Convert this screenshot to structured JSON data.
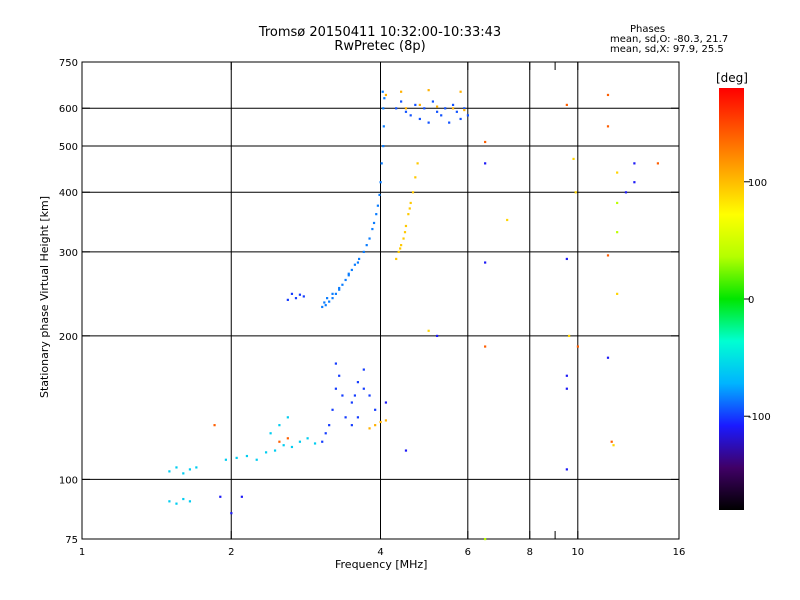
{
  "chart_data": {
    "type": "scatter",
    "title": "Tromsø 20150411 10:32:00-10:33:43",
    "subtitle": "RwPretec (8p)",
    "xlabel": "Frequency [MHz]",
    "ylabel": "Stationary phase Virtual Height [km]",
    "x_scale": "log",
    "y_scale": "log",
    "xlim": [
      1,
      16
    ],
    "ylim": [
      75,
      750
    ],
    "grid": true,
    "x_ticks": [
      1,
      2,
      4,
      6,
      8,
      9,
      10,
      16
    ],
    "x_tick_labels": [
      "1",
      "2",
      "4",
      "6",
      "8",
      "",
      "10",
      "16"
    ],
    "x_grid_lines": [
      2,
      4,
      6,
      8,
      10
    ],
    "y_ticks": [
      75,
      100,
      200,
      300,
      400,
      500,
      600,
      750
    ],
    "y_tick_labels": [
      "75",
      "100",
      "200",
      "300",
      "400",
      "500",
      "600",
      "750"
    ],
    "y_grid_lines": [
      100,
      200,
      300,
      400,
      500,
      600
    ],
    "phases_title": "Phases",
    "stats": [
      "mean, sd,O: -80.3, 21.7",
      "mean, sd,X:  97.9, 25.5"
    ],
    "colorbar": {
      "label": "[deg]",
      "range": [
        -180,
        180
      ],
      "ticks": [
        100,
        0,
        -100
      ],
      "tick_labels": [
        "100",
        "0",
        "-100"
      ],
      "colors": [
        "#000000",
        "#400066",
        "#1a1aff",
        "#00b4ff",
        "#00ffd2",
        "#00e600",
        "#b4ff00",
        "#ffff00",
        "#ffaa00",
        "#ff5500",
        "#ff0000"
      ]
    },
    "groups": [
      {
        "name": "",
        "phase": -85,
        "points": [
          [
            4.0,
            420
          ],
          [
            3.98,
            395
          ],
          [
            3.95,
            375
          ],
          [
            3.92,
            360
          ],
          [
            3.88,
            345
          ],
          [
            3.85,
            335
          ],
          [
            3.8,
            320
          ],
          [
            3.75,
            310
          ],
          [
            3.7,
            300
          ],
          [
            3.62,
            290
          ],
          [
            3.55,
            282
          ],
          [
            3.5,
            275
          ],
          [
            3.45,
            268
          ],
          [
            3.4,
            262
          ],
          [
            3.35,
            256
          ],
          [
            3.3,
            250
          ],
          [
            3.25,
            245
          ],
          [
            3.2,
            240
          ],
          [
            3.15,
            236
          ],
          [
            3.1,
            232
          ],
          [
            3.05,
            230
          ],
          [
            3.6,
            285
          ],
          [
            3.45,
            270
          ],
          [
            3.3,
            252
          ],
          [
            3.2,
            245
          ],
          [
            3.12,
            240
          ],
          [
            3.08,
            235
          ],
          [
            4.02,
            460
          ],
          [
            4.05,
            500
          ],
          [
            4.06,
            550
          ],
          [
            4.05,
            600
          ],
          [
            4.04,
            650
          ],
          [
            4.07,
            630
          ]
        ]
      },
      {
        "name": "",
        "phase": -95,
        "points": [
          [
            4.3,
            600
          ],
          [
            4.4,
            620
          ],
          [
            4.5,
            590
          ],
          [
            4.6,
            580
          ],
          [
            4.7,
            610
          ],
          [
            4.8,
            570
          ],
          [
            4.9,
            600
          ],
          [
            5.0,
            560
          ],
          [
            5.1,
            620
          ],
          [
            5.2,
            590
          ],
          [
            5.3,
            580
          ],
          [
            5.4,
            600
          ],
          [
            5.5,
            560
          ],
          [
            5.6,
            610
          ],
          [
            5.7,
            590
          ],
          [
            5.8,
            570
          ],
          [
            5.9,
            600
          ],
          [
            6.0,
            580
          ]
        ]
      },
      {
        "name": "",
        "phase": 95,
        "points": [
          [
            4.3,
            290
          ],
          [
            4.35,
            300
          ],
          [
            4.4,
            310
          ],
          [
            4.45,
            320
          ],
          [
            4.5,
            340
          ],
          [
            4.55,
            360
          ],
          [
            4.6,
            380
          ],
          [
            4.65,
            400
          ],
          [
            4.7,
            430
          ],
          [
            4.75,
            460
          ],
          [
            4.38,
            305
          ],
          [
            4.48,
            330
          ],
          [
            4.58,
            370
          ]
        ]
      },
      {
        "name": "",
        "phase": -100,
        "points": [
          [
            3.05,
            120
          ],
          [
            3.1,
            125
          ],
          [
            3.15,
            130
          ],
          [
            3.2,
            140
          ],
          [
            3.25,
            155
          ],
          [
            3.3,
            165
          ],
          [
            3.35,
            150
          ],
          [
            3.4,
            135
          ],
          [
            3.5,
            145
          ],
          [
            3.6,
            160
          ],
          [
            3.7,
            170
          ],
          [
            3.8,
            150
          ],
          [
            3.9,
            140
          ],
          [
            3.5,
            130
          ],
          [
            3.6,
            135
          ],
          [
            3.25,
            175
          ],
          [
            3.55,
            150
          ],
          [
            3.7,
            155
          ]
        ]
      },
      {
        "name": "",
        "phase": -60,
        "points": [
          [
            1.5,
            104
          ],
          [
            1.55,
            106
          ],
          [
            1.6,
            103
          ],
          [
            1.65,
            105
          ],
          [
            1.7,
            106
          ],
          [
            1.5,
            90
          ],
          [
            1.55,
            89
          ],
          [
            1.6,
            91
          ],
          [
            1.65,
            90
          ],
          [
            1.95,
            110
          ],
          [
            2.05,
            111
          ],
          [
            2.15,
            112
          ],
          [
            2.25,
            110
          ],
          [
            2.35,
            114
          ],
          [
            2.45,
            115
          ],
          [
            2.55,
            118
          ],
          [
            2.65,
            117
          ],
          [
            2.75,
            120
          ],
          [
            2.85,
            122
          ],
          [
            2.95,
            119
          ],
          [
            2.4,
            125
          ],
          [
            2.5,
            130
          ],
          [
            2.6,
            135
          ]
        ]
      },
      {
        "name": "",
        "phase": 105,
        "points": [
          [
            4.5,
            600
          ],
          [
            4.8,
            610
          ],
          [
            5.2,
            605
          ],
          [
            5.6,
            600
          ],
          [
            5.9,
            595
          ],
          [
            4.1,
            640
          ],
          [
            4.4,
            650
          ],
          [
            5.0,
            655
          ],
          [
            5.8,
            650
          ],
          [
            3.8,
            128
          ],
          [
            3.9,
            130
          ],
          [
            4.0,
            132
          ],
          [
            4.1,
            133
          ]
        ]
      },
      {
        "name": "",
        "phase": -100,
        "points": [
          [
            2.6,
            238
          ],
          [
            2.7,
            240
          ],
          [
            2.65,
            245
          ],
          [
            2.75,
            244
          ],
          [
            2.8,
            242
          ]
        ]
      },
      {
        "name": "",
        "phase": -110,
        "points": [
          [
            6.5,
            460
          ],
          [
            6.5,
            285
          ],
          [
            5.2,
            200
          ],
          [
            9.5,
            290
          ],
          [
            9.5,
            165
          ],
          [
            9.5,
            155
          ],
          [
            9.5,
            105
          ],
          [
            11.5,
            180
          ],
          [
            12.5,
            400
          ],
          [
            13.0,
            460
          ],
          [
            13.0,
            420
          ],
          [
            4.5,
            115
          ],
          [
            4.1,
            145
          ],
          [
            1.9,
            92
          ],
          [
            2.0,
            85
          ],
          [
            2.1,
            92
          ]
        ]
      },
      {
        "name": "",
        "phase": 140,
        "points": [
          [
            6.5,
            510
          ],
          [
            6.5,
            190
          ],
          [
            9.5,
            610
          ],
          [
            10.0,
            190
          ],
          [
            11.5,
            640
          ],
          [
            11.5,
            550
          ],
          [
            11.5,
            295
          ],
          [
            11.7,
            120
          ],
          [
            14.5,
            460
          ],
          [
            1.85,
            130
          ],
          [
            2.5,
            120
          ],
          [
            2.6,
            122
          ]
        ]
      },
      {
        "name": "",
        "phase": 90,
        "points": [
          [
            7.2,
            350
          ],
          [
            9.8,
            470
          ],
          [
            9.9,
            400
          ],
          [
            9.6,
            200
          ],
          [
            12.0,
            440
          ],
          [
            12.0,
            245
          ],
          [
            11.8,
            118
          ],
          [
            5.0,
            205
          ]
        ]
      },
      {
        "name": "",
        "phase": 40,
        "points": [
          [
            12.0,
            380
          ],
          [
            12.0,
            330
          ],
          [
            6.5,
            75
          ]
        ]
      }
    ]
  }
}
